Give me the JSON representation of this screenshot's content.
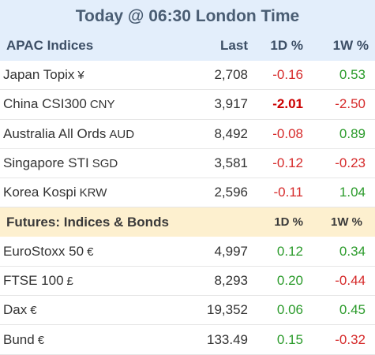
{
  "title": "Today @ 06:30 London Time",
  "apac": {
    "header": {
      "label": "APAC Indices",
      "last": "Last",
      "d1": "1D %",
      "w1": "1W %"
    },
    "rows": [
      {
        "name": "Japan Topix",
        "currency": "¥",
        "last": "2,708",
        "d1": "-0.16",
        "w1": "0.53"
      },
      {
        "name": "China CSI300",
        "currency": "CNY",
        "last": "3,917",
        "d1": "-2.01",
        "w1": "-2.50"
      },
      {
        "name": "Australia All Ords",
        "currency": "AUD",
        "last": "8,492",
        "d1": "-0.08",
        "w1": "0.89"
      },
      {
        "name": "Singapore STI",
        "currency": "SGD",
        "last": "3,581",
        "d1": "-0.12",
        "w1": "-0.23"
      },
      {
        "name": "Korea Kospi",
        "currency": "KRW",
        "last": "2,596",
        "d1": "-0.11",
        "w1": "1.04"
      }
    ]
  },
  "futures": {
    "header": {
      "label": "Futures: Indices & Bonds",
      "d1": "1D %",
      "w1": "1W %"
    },
    "rows": [
      {
        "name": "EuroStoxx 50",
        "currency": "€",
        "last": "4,997",
        "d1": "0.12",
        "w1": "0.34"
      },
      {
        "name": "FTSE 100",
        "currency": "£",
        "last": "8,293",
        "d1": "0.20",
        "w1": "-0.44"
      },
      {
        "name": "Dax",
        "currency": "€",
        "last": "19,352",
        "d1": "0.06",
        "w1": "0.45"
      },
      {
        "name": "Bund",
        "currency": "€",
        "last": "133.49",
        "d1": "0.15",
        "w1": "-0.32"
      }
    ]
  },
  "colors": {
    "positive": "#2b9b2b",
    "negative": "#d62a2a",
    "header_bg": "#e3eefb",
    "futures_bg": "#fdf0cf"
  }
}
